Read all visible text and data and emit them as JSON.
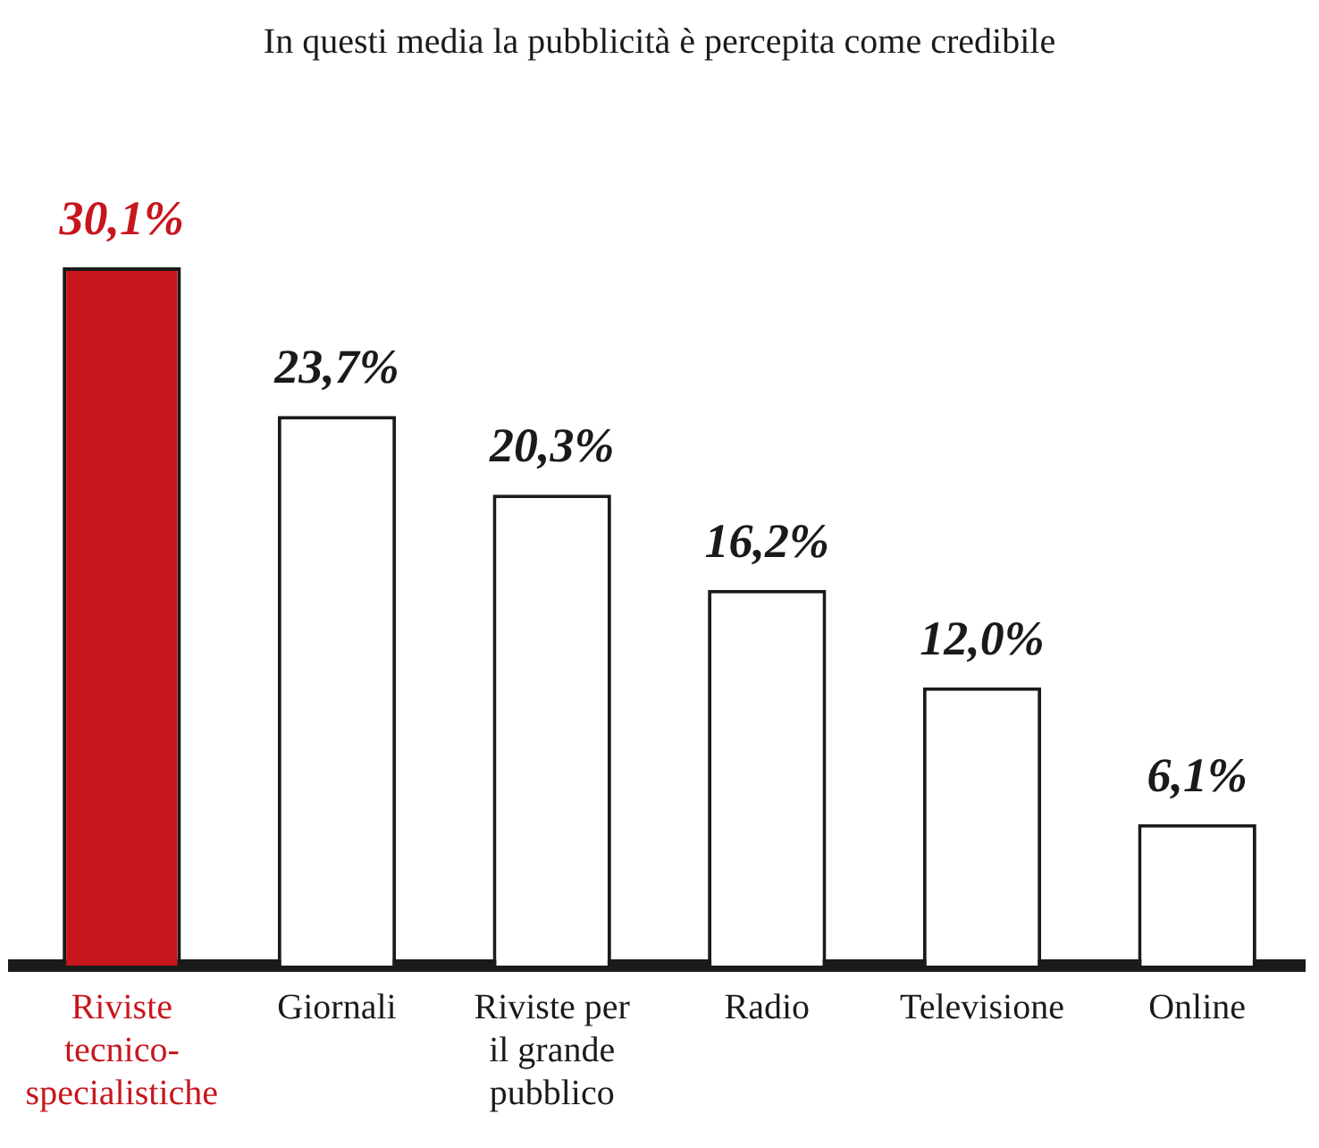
{
  "chart_data": {
    "type": "bar",
    "title": "In questi media la pubblicità è percepita come credibile",
    "categories": [
      "Riviste tecnico-specialistiche",
      "Giornali",
      "Riviste per il grande pubblico",
      "Radio",
      "Televisione",
      "Online"
    ],
    "values": [
      30.1,
      23.7,
      20.3,
      16.2,
      12.0,
      6.1
    ],
    "colors": [
      "#c8161d",
      "#ffffff",
      "#ffffff",
      "#ffffff",
      "#ffffff",
      "#ffffff"
    ],
    "value_labels": [
      "30,1%",
      "23,7%",
      "20,3%",
      "16,2%",
      "12,0%",
      "6,1%"
    ],
    "grid": false,
    "legend": false
  }
}
